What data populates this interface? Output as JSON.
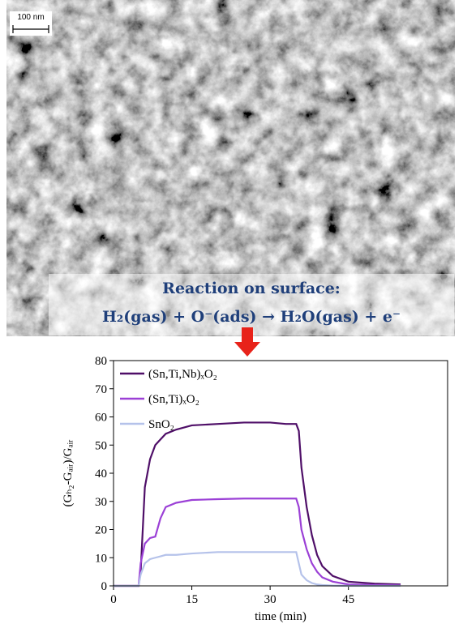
{
  "image": {
    "scale_bar": "100 nm",
    "caption_title": "Reaction on surface:",
    "caption_equation": "H₂(gas) + O⁻(ads) → H₂O(gas) + e⁻"
  },
  "chart_data": {
    "type": "line",
    "xlabel": "time (min)",
    "ylabel": "(Gₕ₂-Gₐᵢᵣ)/Gₐᵢᵣ",
    "x": [
      0,
      4.8,
      5.2,
      6,
      7,
      8,
      9,
      10,
      12,
      15,
      20,
      25,
      30,
      33,
      35,
      35.5,
      36,
      37,
      38,
      39,
      40,
      42,
      45,
      50,
      55
    ],
    "series": [
      {
        "name": "(Sn,Ti,Nb)ₓO₂",
        "color": "#4f0f68",
        "values": [
          0,
          0,
          5,
          35,
          45,
          50,
          52,
          54,
          55.5,
          57,
          57.5,
          58,
          58,
          57.5,
          57.5,
          55,
          42,
          28,
          18,
          11,
          7,
          3.5,
          1.5,
          0.8,
          0.5
        ]
      },
      {
        "name": "(Sn,Ti)ₓO₂",
        "color": "#9b40d6",
        "values": [
          0,
          0,
          8,
          15,
          17,
          17.5,
          24,
          28,
          29.5,
          30.5,
          30.8,
          31,
          31,
          31,
          31,
          28,
          20,
          13,
          8,
          5,
          3,
          1.5,
          0.5,
          0.3,
          0.2
        ]
      },
      {
        "name": "SnO₂",
        "color": "#b5c2ea",
        "values": [
          0,
          0,
          4,
          8,
          9.5,
          10,
          10.5,
          11,
          11,
          11.5,
          12,
          12,
          12,
          12,
          12,
          8,
          4,
          2,
          1,
          0.5,
          0.3,
          0.1,
          0,
          0,
          0
        ]
      }
    ],
    "xlim": [
      0,
      64
    ],
    "ylim": [
      0,
      80
    ],
    "xticks": [
      0,
      15,
      30,
      45
    ],
    "yticks": [
      0,
      10,
      20,
      30,
      40,
      50,
      60,
      70,
      80
    ]
  }
}
